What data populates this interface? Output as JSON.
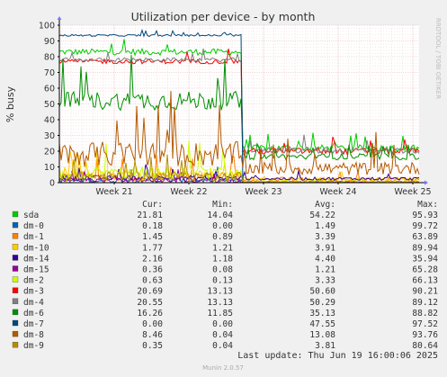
{
  "chart_data": {
    "type": "line",
    "title": "Utilization per device - by month",
    "ylabel": "% busy",
    "xlabel": "",
    "ylim": [
      0,
      100
    ],
    "yticks": [
      0,
      10,
      20,
      30,
      40,
      50,
      60,
      70,
      80,
      90,
      100
    ],
    "x_tick_labels": [
      "Week 21",
      "Week 22",
      "Week 23",
      "Week 24",
      "Week 25"
    ],
    "grid": true,
    "watermark": "RRDTOOL / TOBI OETIKER",
    "legend_headers": {
      "cur": "Cur:",
      "min": "Min:",
      "avg": "Avg:",
      "max": "Max:"
    },
    "series": [
      {
        "name": "sda",
        "color": "#00cc00",
        "cur": "21.81",
        "min": "14.04",
        "avg": "54.22",
        "max": "95.93",
        "before": [
          83,
          2
        ],
        "after": [
          22,
          2
        ]
      },
      {
        "name": "dm-0",
        "color": "#0066b3",
        "cur": "0.18",
        "min": "0.00",
        "avg": "1.49",
        "max": "99.72",
        "before": [
          1.5,
          1.5
        ],
        "after": [
          0.2,
          0.3
        ]
      },
      {
        "name": "dm-1",
        "color": "#ff8000",
        "cur": "1.45",
        "min": "0.89",
        "avg": "3.39",
        "max": "63.89",
        "before": [
          4,
          3
        ],
        "after": [
          2,
          1.5
        ]
      },
      {
        "name": "dm-10",
        "color": "#ffcc00",
        "cur": "1.77",
        "min": "1.21",
        "avg": "3.91",
        "max": "89.94",
        "before": [
          5,
          3
        ],
        "after": [
          2.2,
          1
        ]
      },
      {
        "name": "dm-14",
        "color": "#330099",
        "cur": "2.16",
        "min": "1.18",
        "avg": "4.40",
        "max": "35.94",
        "before": [
          3,
          1.5
        ],
        "after": [
          2.5,
          1
        ]
      },
      {
        "name": "dm-15",
        "color": "#990099",
        "cur": "0.36",
        "min": "0.08",
        "avg": "1.21",
        "max": "65.28",
        "before": [
          1.5,
          1.5
        ],
        "after": [
          0.5,
          0.4
        ]
      },
      {
        "name": "dm-2",
        "color": "#ccff00",
        "cur": "0.63",
        "min": "0.13",
        "avg": "3.33",
        "max": "66.13",
        "before": [
          6,
          4
        ],
        "after": [
          0.8,
          0.5
        ]
      },
      {
        "name": "dm-3",
        "color": "#ff0000",
        "cur": "20.69",
        "min": "13.13",
        "avg": "50.60",
        "max": "90.21",
        "before": [
          77,
          1.5
        ],
        "after": [
          20,
          2
        ]
      },
      {
        "name": "dm-4",
        "color": "#808080",
        "cur": "20.55",
        "min": "13.13",
        "avg": "50.29",
        "max": "89.12",
        "before": [
          78,
          1.2
        ],
        "after": [
          20.5,
          2
        ]
      },
      {
        "name": "dm-6",
        "color": "#008f00",
        "cur": "16.26",
        "min": "11.85",
        "avg": "35.13",
        "max": "88.82",
        "before": [
          52,
          6
        ],
        "after": [
          16.5,
          2
        ]
      },
      {
        "name": "dm-7",
        "color": "#00487d",
        "cur": "0.00",
        "min": "0.00",
        "avg": "47.55",
        "max": "97.52",
        "before": [
          93.5,
          0.6
        ],
        "after": [
          0,
          0
        ]
      },
      {
        "name": "dm-8",
        "color": "#b35a00",
        "cur": "8.46",
        "min": "0.04",
        "avg": "13.08",
        "max": "93.76",
        "before": [
          18,
          8
        ],
        "after": [
          9,
          4
        ]
      },
      {
        "name": "dm-9",
        "color": "#b38f00",
        "cur": "0.35",
        "min": "0.04",
        "avg": "3.81",
        "max": "80.64",
        "before": [
          4,
          3
        ],
        "after": [
          0.5,
          0.5
        ]
      }
    ]
  },
  "last_update": "Last update: Thu Jun 19 16:00:06 2025",
  "footer": "Munin 2.0.57"
}
